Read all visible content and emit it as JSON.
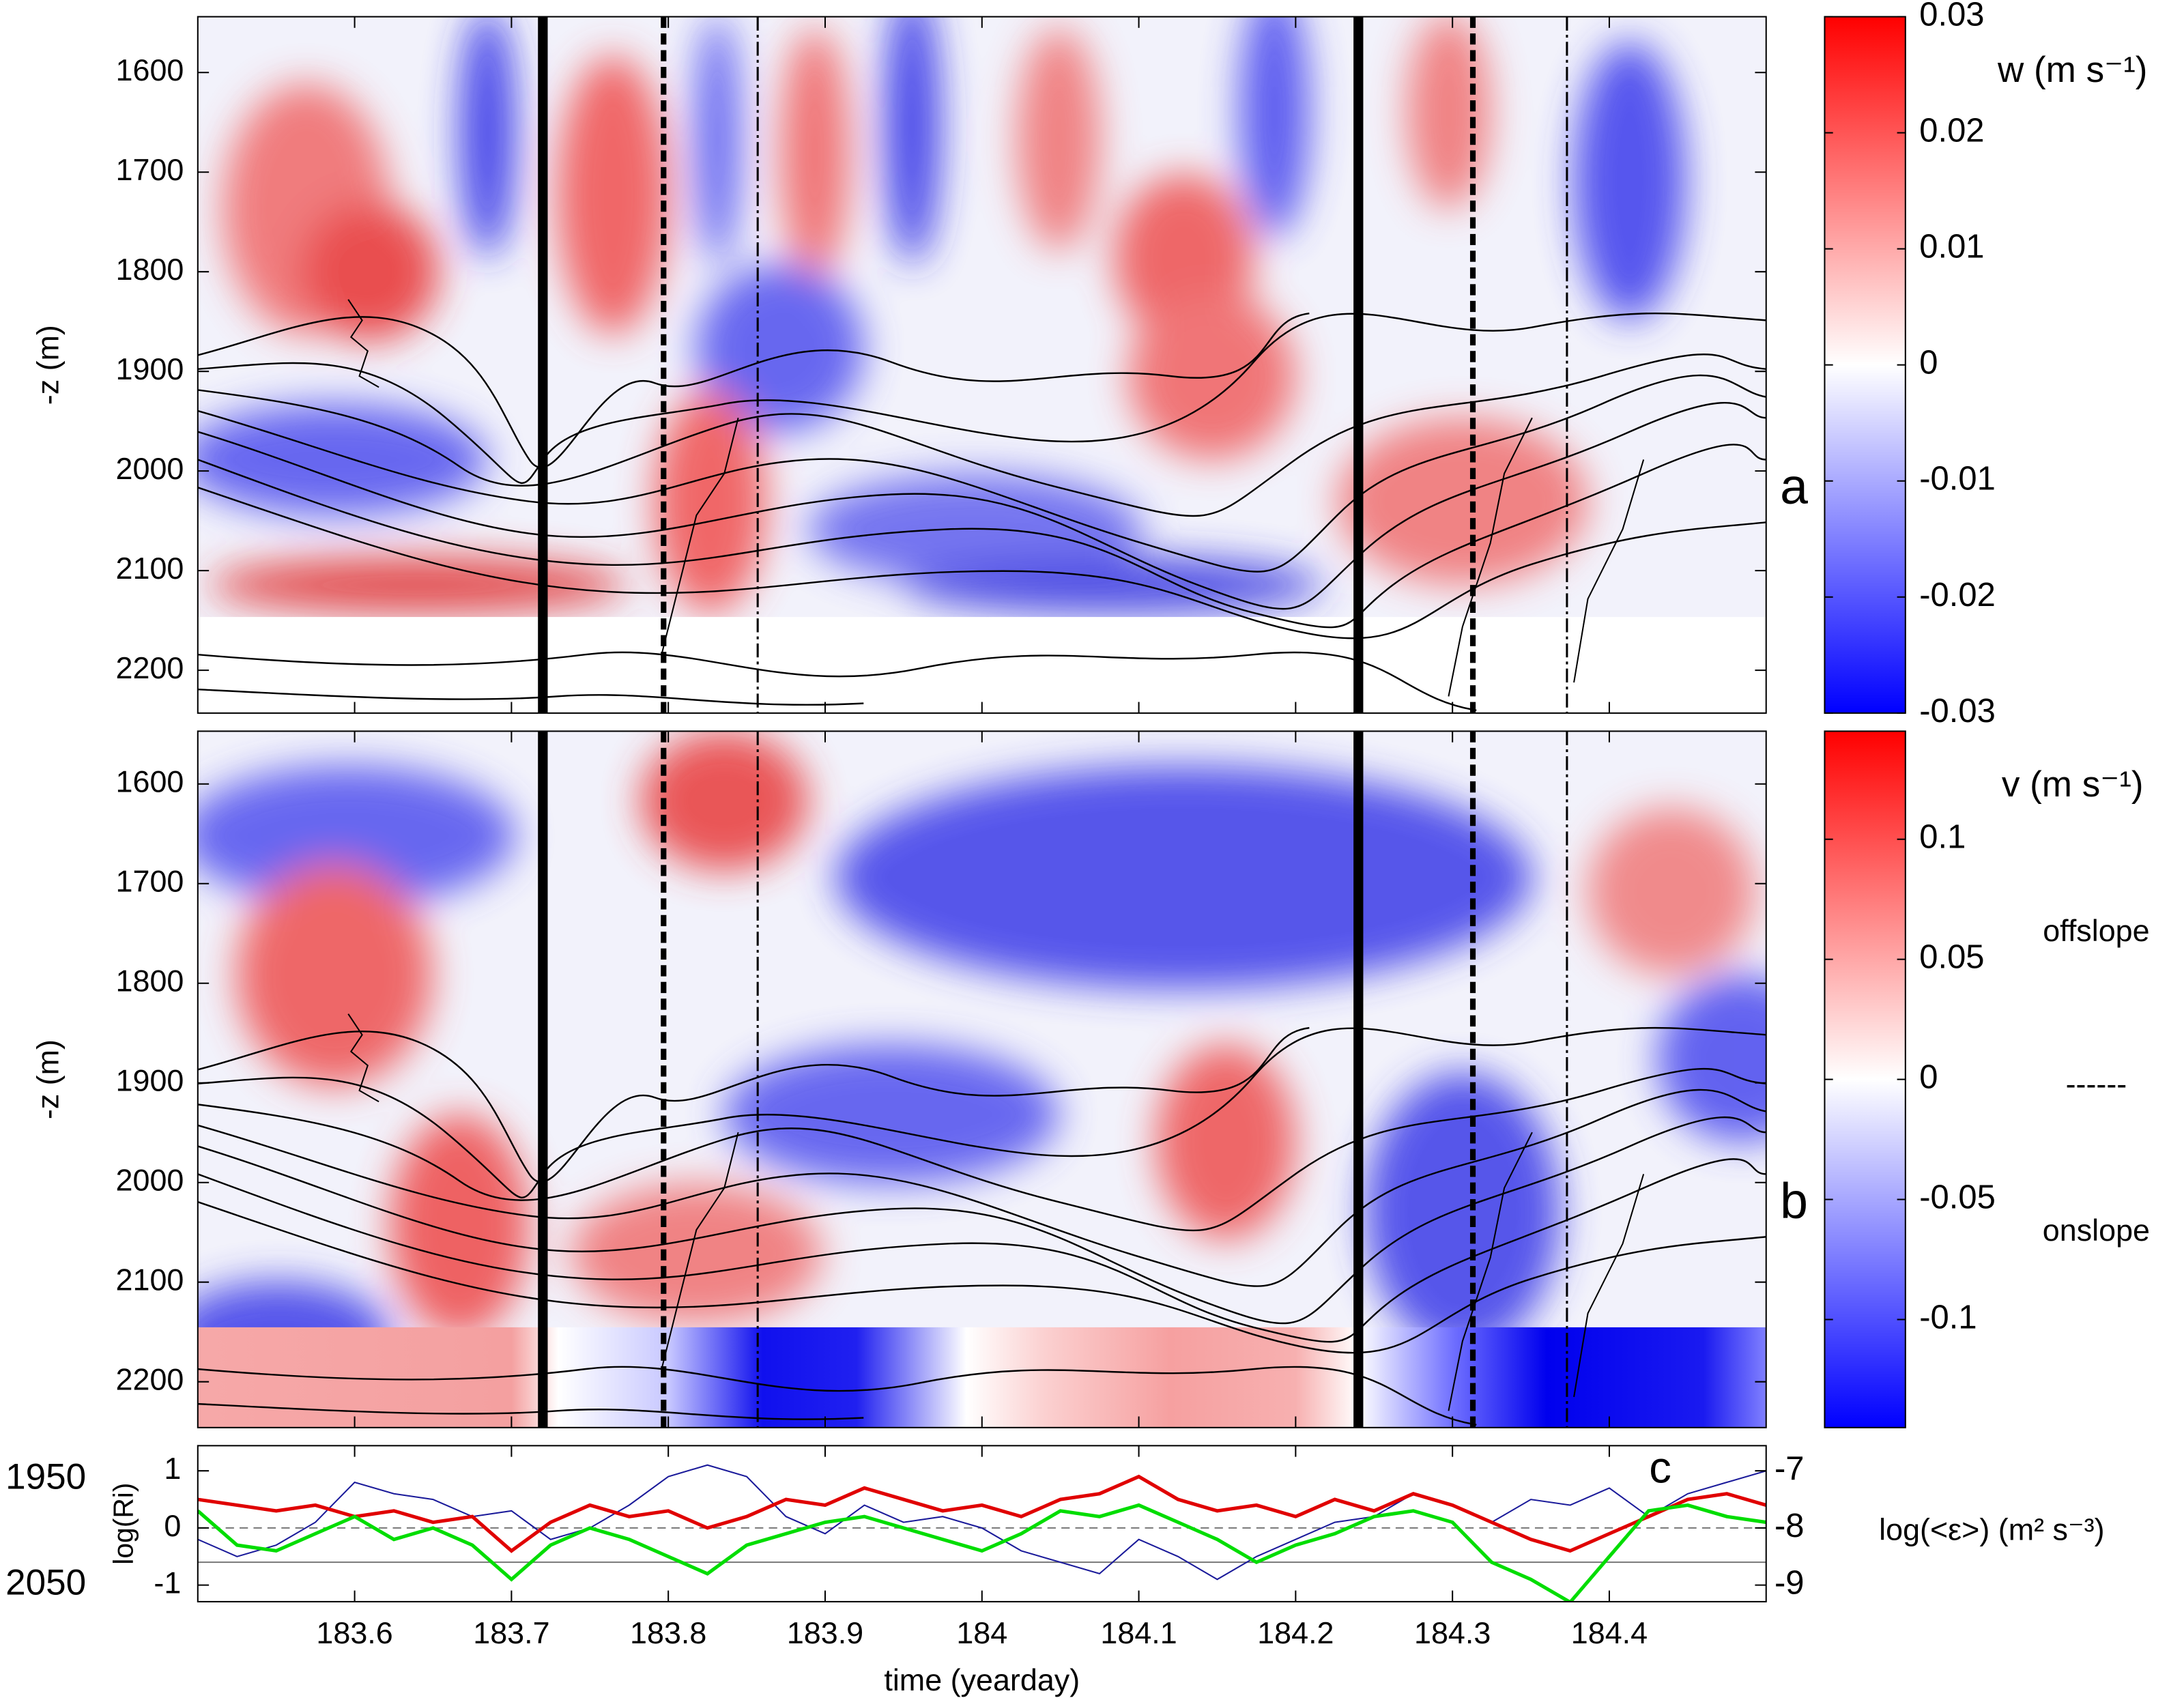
{
  "chart_data": [
    {
      "type": "heatmap",
      "panel_label": "a",
      "ylabel": "-z (m)",
      "xlim": [
        183.5,
        184.5
      ],
      "xticks": [
        183.6,
        183.7,
        183.8,
        183.9,
        184,
        184.1,
        184.2,
        184.3,
        184.4
      ],
      "ylim": [
        1544,
        2243
      ],
      "y_reversed": true,
      "yticks": [
        1600,
        1700,
        1800,
        1900,
        2000,
        2100,
        2200
      ],
      "markers": [
        {
          "x": 183.72,
          "style": "solid"
        },
        {
          "x": 183.797,
          "style": "dashed"
        },
        {
          "x": 183.857,
          "style": "dashdot"
        },
        {
          "x": 184.24,
          "style": "solid"
        },
        {
          "x": 184.313,
          "style": "dashed"
        },
        {
          "x": 184.373,
          "style": "dashdot"
        }
      ],
      "colorbar": {
        "label": "w (m s⁻¹)",
        "clim": [
          -0.03,
          0.03
        ],
        "ticks": [
          0.03,
          0.02,
          0.01,
          0,
          -0.01,
          -0.02,
          -0.03
        ],
        "colormap": [
          "#0000ff",
          "#ffffff",
          "#ff0000"
        ]
      }
    },
    {
      "type": "heatmap",
      "panel_label": "b",
      "ylabel": "-z (m)",
      "xlim": [
        183.5,
        184.5
      ],
      "xticks": [
        183.6,
        183.7,
        183.8,
        183.9,
        184,
        184.1,
        184.2,
        184.3,
        184.4
      ],
      "ylim": [
        1547,
        2246
      ],
      "y_reversed": true,
      "yticks": [
        1600,
        1700,
        1800,
        1900,
        2000,
        2100,
        2200
      ],
      "markers": [
        {
          "x": 183.72,
          "style": "solid"
        },
        {
          "x": 183.797,
          "style": "dashed"
        },
        {
          "x": 183.857,
          "style": "dashdot"
        },
        {
          "x": 184.24,
          "style": "solid"
        },
        {
          "x": 184.313,
          "style": "dashed"
        },
        {
          "x": 184.373,
          "style": "dashdot"
        }
      ],
      "colorbar": {
        "label": "v (m s⁻¹)",
        "clim": [
          -0.145,
          0.145
        ],
        "ticks": [
          0.1,
          0.05,
          0,
          -0.05,
          -0.1
        ],
        "colormap": [
          "#0000ff",
          "#ffffff",
          "#ff0000"
        ]
      },
      "annotations": [
        {
          "text": "offslope",
          "color": "#ff0000"
        },
        {
          "text": "------",
          "color": "#000000"
        },
        {
          "text": "onslope",
          "color": "#0000cc"
        }
      ]
    },
    {
      "type": "line",
      "panel_label": "c",
      "ylabel": "log(Ri)",
      "y2label": "log(<ε>) (m² s⁻³)",
      "xlabel": "time (yearday)",
      "xlim": [
        183.5,
        184.5
      ],
      "xticks": [
        183.6,
        183.7,
        183.8,
        183.9,
        184,
        184.1,
        184.2,
        184.3,
        184.4
      ],
      "ylim": [
        -1.29,
        1.44
      ],
      "yticks": [
        1,
        0,
        -1
      ],
      "y2lim": [
        -9.29,
        -6.56
      ],
      "y2ticks": [
        -7,
        -8,
        -9
      ],
      "y2color": "#0000cc",
      "reference_lines": [
        {
          "value": 0,
          "style": "dashed"
        },
        {
          "value": -0.6,
          "style": "solid"
        }
      ],
      "x": [
        183.5,
        183.525,
        183.55,
        183.575,
        183.6,
        183.625,
        183.65,
        183.675,
        183.7,
        183.725,
        183.75,
        183.775,
        183.8,
        183.825,
        183.85,
        183.875,
        183.9,
        183.925,
        183.95,
        183.975,
        184,
        184.025,
        184.05,
        184.075,
        184.1,
        184.125,
        184.15,
        184.175,
        184.2,
        184.225,
        184.25,
        184.275,
        184.3,
        184.325,
        184.35,
        184.375,
        184.4,
        184.425,
        184.45,
        184.475,
        184.5
      ],
      "series": [
        {
          "name": "1950",
          "color": "#e00000",
          "values": [
            0.5,
            0.4,
            0.3,
            0.4,
            0.2,
            0.3,
            0.1,
            0.2,
            -0.4,
            0.1,
            0.4,
            0.2,
            0.3,
            0.0,
            0.2,
            0.5,
            0.4,
            0.7,
            0.5,
            0.3,
            0.4,
            0.2,
            0.5,
            0.6,
            0.9,
            0.5,
            0.3,
            0.4,
            0.2,
            0.5,
            0.3,
            0.6,
            0.4,
            0.1,
            -0.2,
            -0.4,
            -0.1,
            0.2,
            0.5,
            0.6,
            0.4
          ]
        },
        {
          "name": "2050",
          "color": "#00dd00",
          "values": [
            0.3,
            -0.3,
            -0.4,
            -0.1,
            0.2,
            -0.2,
            0.0,
            -0.3,
            -0.9,
            -0.3,
            0.0,
            -0.2,
            -0.5,
            -0.8,
            -0.3,
            -0.1,
            0.1,
            0.2,
            0.0,
            -0.2,
            -0.4,
            -0.1,
            0.3,
            0.2,
            0.4,
            0.1,
            -0.2,
            -0.6,
            -0.3,
            -0.1,
            0.2,
            0.3,
            0.1,
            -0.6,
            -0.9,
            -1.3,
            -0.5,
            0.3,
            0.4,
            0.2,
            0.1
          ]
        },
        {
          "color": "#1a1a9a",
          "axis": "y2",
          "values": [
            -8.2,
            -8.5,
            -8.3,
            -7.9,
            -7.2,
            -7.4,
            -7.5,
            -7.8,
            -7.7,
            -8.2,
            -8.0,
            -7.6,
            -7.1,
            -6.9,
            -7.1,
            -7.8,
            -8.1,
            -7.6,
            -7.9,
            -7.8,
            -8.0,
            -8.4,
            -8.6,
            -8.8,
            -8.2,
            -8.5,
            -8.9,
            -8.5,
            -8.2,
            -7.9,
            -7.8,
            -7.4,
            -7.6,
            -7.9,
            -7.5,
            -7.6,
            -7.3,
            -7.8,
            -7.4,
            -7.2,
            -7.0
          ]
        }
      ]
    }
  ]
}
